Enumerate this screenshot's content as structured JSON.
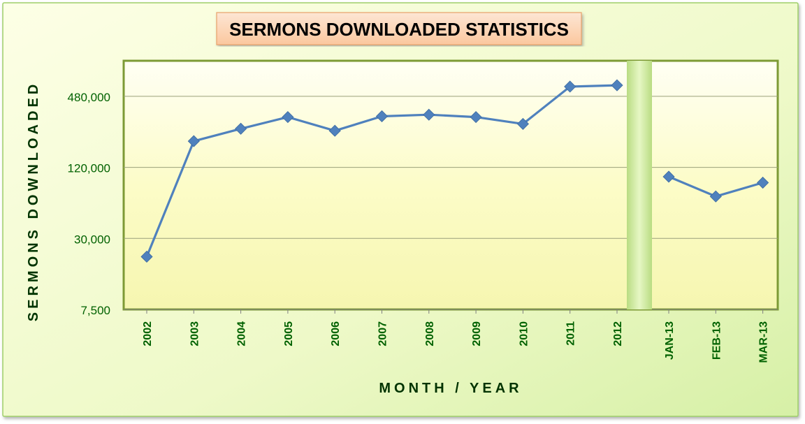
{
  "chart_data": {
    "type": "line",
    "title": "SERMONS DOWNLOADED STATISTICS",
    "xlabel": "MONTH / YEAR",
    "ylabel": "SERMONS DOWNLOADED",
    "y_scale": "log",
    "ylim": [
      7500,
      960000
    ],
    "y_ticks": [
      7500,
      30000,
      120000,
      480000
    ],
    "y_tick_labels": [
      "7,500",
      "30,000",
      "120,000",
      "480,000"
    ],
    "grid": true,
    "legend": "none",
    "segments": [
      {
        "categories": [
          "2002",
          "2003",
          "2004",
          "2005",
          "2006",
          "2007",
          "2008",
          "2009",
          "2010",
          "2011",
          "2012"
        ],
        "values": [
          21000,
          200000,
          255000,
          320000,
          245000,
          325000,
          335000,
          320000,
          280000,
          580000,
          595000
        ]
      },
      {
        "categories": [
          "JAN-13",
          "FEB-13",
          "MAR-13"
        ],
        "values": [
          100000,
          68000,
          89000
        ]
      }
    ],
    "colors": {
      "series": "#4F81BD",
      "axis_text": "#006100",
      "title_text": "#000000",
      "grid": "#9aa07a"
    }
  }
}
